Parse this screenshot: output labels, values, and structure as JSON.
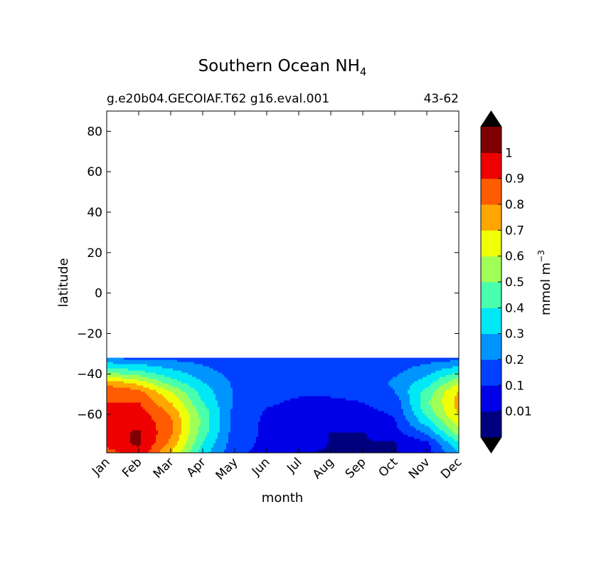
{
  "chart_data": {
    "type": "contourf",
    "title": "Southern Ocean NH",
    "title_subscript": "4",
    "subtitle_left": "g.e20b04.GECOIAF.T62 g16.eval.001",
    "subtitle_right": "43-62",
    "xlabel": "month",
    "ylabel": "latitude",
    "x_categories": [
      "Jan",
      "Feb",
      "Mar",
      "Apr",
      "May",
      "Jun",
      "Jul",
      "Aug",
      "Sep",
      "Oct",
      "Nov",
      "Dec"
    ],
    "y_ticks": [
      80,
      60,
      40,
      20,
      0,
      -20,
      -40,
      -60
    ],
    "y_tick_labels": [
      "80",
      "60",
      "40",
      "20",
      "0",
      "−20",
      "−40",
      "−60"
    ],
    "ylim": [
      -79,
      90
    ],
    "data_lat_range": [
      -79,
      -32
    ],
    "colorbar": {
      "label": "mmol m",
      "label_superscript": "−3",
      "extend": "both",
      "tick_labels": [
        "1",
        "0.9",
        "0.8",
        "0.7",
        "0.6",
        "0.5",
        "0.4",
        "0.3",
        "0.2",
        "0.1",
        "0.01"
      ],
      "levels": [
        0.0,
        0.01,
        0.1,
        0.2,
        0.3,
        0.4,
        0.5,
        0.6,
        0.7,
        0.8,
        0.9,
        1.0,
        1.1
      ],
      "colors": [
        "#00007f",
        "#0000e8",
        "#0040ff",
        "#0094ff",
        "#00e8f6",
        "#49ffad",
        "#a0ff56",
        "#eeff08",
        "#ffa700",
        "#ff5b00",
        "#ee0000",
        "#7f0000"
      ],
      "under_color": "#000000",
      "over_color": "#000000"
    },
    "field": {
      "latitudes": [
        -79,
        -74,
        -69,
        -64,
        -59,
        -54,
        -49,
        -44,
        -39,
        -34,
        -32
      ],
      "months": [
        "Jan",
        "Feb",
        "Mar",
        "Apr",
        "May",
        "Jun",
        "Jul",
        "Aug",
        "Sep",
        "Oct",
        "Nov",
        "Dec"
      ],
      "values": [
        [
          0.85,
          0.98,
          0.7,
          0.35,
          0.12,
          0.07,
          0.005,
          0.005,
          0.005,
          0.005,
          0.05,
          0.3
        ],
        [
          0.95,
          1.02,
          0.78,
          0.4,
          0.14,
          0.08,
          0.06,
          0.005,
          0.005,
          0.005,
          0.08,
          0.4
        ],
        [
          0.97,
          1.01,
          0.82,
          0.45,
          0.15,
          0.08,
          0.06,
          0.005,
          0.005,
          0.07,
          0.22,
          0.55
        ],
        [
          0.95,
          0.98,
          0.82,
          0.47,
          0.16,
          0.08,
          0.07,
          0.06,
          0.07,
          0.09,
          0.35,
          0.65
        ],
        [
          0.93,
          0.95,
          0.78,
          0.46,
          0.17,
          0.09,
          0.08,
          0.07,
          0.08,
          0.11,
          0.44,
          0.72
        ],
        [
          0.9,
          0.9,
          0.7,
          0.4,
          0.18,
          0.11,
          0.09,
          0.09,
          0.1,
          0.14,
          0.48,
          0.74
        ],
        [
          0.9,
          0.85,
          0.6,
          0.36,
          0.19,
          0.12,
          0.11,
          0.11,
          0.12,
          0.2,
          0.44,
          0.72
        ],
        [
          0.75,
          0.64,
          0.45,
          0.3,
          0.18,
          0.13,
          0.12,
          0.12,
          0.13,
          0.22,
          0.35,
          0.58
        ],
        [
          0.48,
          0.42,
          0.33,
          0.24,
          0.16,
          0.13,
          0.12,
          0.12,
          0.13,
          0.18,
          0.27,
          0.4
        ],
        [
          0.28,
          0.26,
          0.22,
          0.18,
          0.14,
          0.12,
          0.12,
          0.12,
          0.12,
          0.14,
          0.18,
          0.22
        ],
        [
          0.18,
          0.17,
          0.16,
          0.15,
          0.13,
          0.12,
          0.12,
          0.12,
          0.12,
          0.13,
          0.15,
          0.17
        ]
      ]
    }
  }
}
